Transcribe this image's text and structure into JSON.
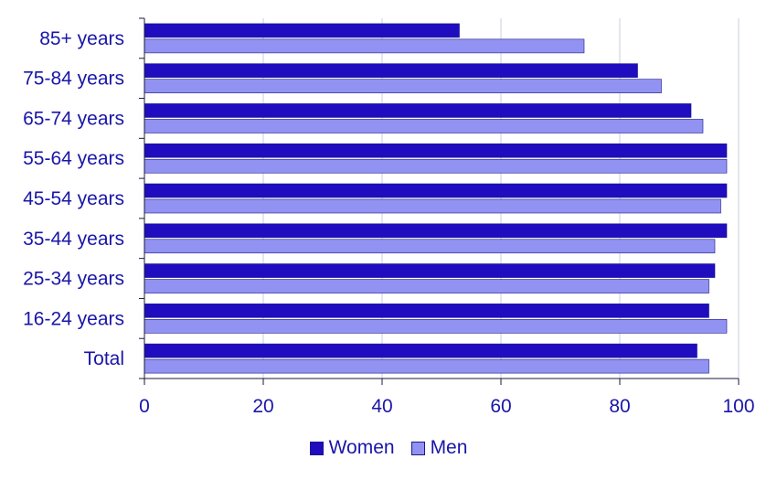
{
  "chart_data": {
    "type": "bar",
    "orientation": "horizontal",
    "title": "",
    "xlabel": "",
    "ylabel": "",
    "categories": [
      "85+ years",
      "75-84 years",
      "65-74 years",
      "55-64 years",
      "45-54 years",
      "35-44 years",
      "25-34 years",
      "16-24 years",
      "Total"
    ],
    "series": [
      {
        "name": "Women",
        "color": "#1f0dbf",
        "values": [
          53,
          83,
          92,
          98,
          98,
          98,
          96,
          95,
          93
        ]
      },
      {
        "name": "Men",
        "color": "#9292f2",
        "values": [
          74,
          87,
          94,
          98,
          97,
          96,
          95,
          98,
          95
        ]
      }
    ],
    "xlim": [
      0,
      100
    ],
    "xticks": [
      0,
      20,
      40,
      60,
      80,
      100
    ],
    "grid": "vertical",
    "legend_position": "bottom-center",
    "text_color": "#1a16a8",
    "grid_color": "#c8cce0"
  }
}
